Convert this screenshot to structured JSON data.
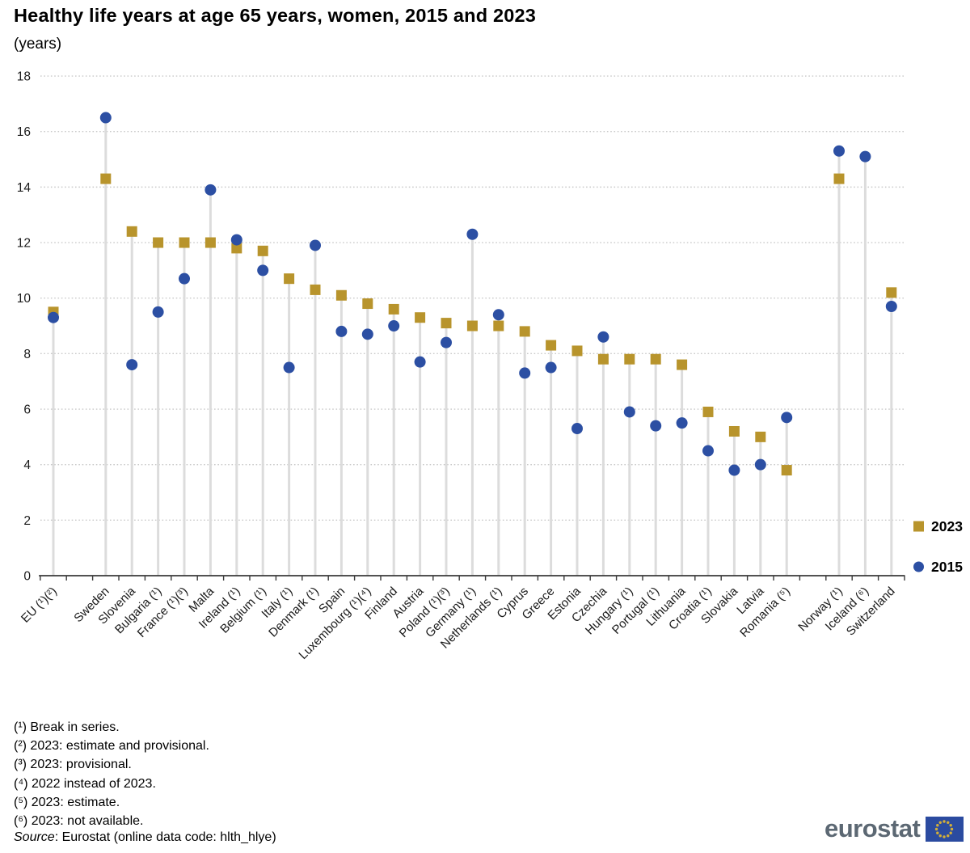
{
  "header": {
    "title": "Healthy life years at age 65 years, women, 2015 and 2023",
    "subtitle": "(years)"
  },
  "legend": {
    "items": [
      {
        "label": "2023",
        "marker": "square"
      },
      {
        "label": "2015",
        "marker": "circle"
      }
    ]
  },
  "footnotes": [
    "(¹) Break in series.",
    "(²) 2023: estimate and provisional.",
    "(³) 2023: provisional.",
    "(⁴) 2022 instead of 2023.",
    "(⁵) 2023: estimate.",
    "(⁶) 2023: not available."
  ],
  "source": {
    "label": "Source",
    "text": ": Eurostat (online data code: hlth_hlye)"
  },
  "logo": {
    "wordmark": "eurostat"
  },
  "chart_data": {
    "type": "scatter",
    "title": "Healthy life years at age 65 years, women, 2015 and 2023",
    "unit": "years",
    "ylim": [
      0,
      18
    ],
    "yticks": [
      0,
      2,
      4,
      6,
      8,
      10,
      12,
      14,
      16,
      18
    ],
    "grid": "horizontal dotted gridlines, solid x-axis, gray value stems per country",
    "legend_position": "right",
    "series_names": [
      "2023",
      "2015"
    ],
    "colors": {
      "s2023": "#B8942C",
      "s2015": "#2C4FA3",
      "stem": "#DCDCDC",
      "grid": "#C9C9C9",
      "axis": "#3A3A3A",
      "flag_blue": "#2B4BA0",
      "star_gold": "#D4AF37"
    },
    "points": [
      {
        "country": "EU (¹)(²)",
        "v2023": 9.5,
        "v2015": 9.3
      },
      {
        "country": "Sweden",
        "v2023": 14.3,
        "v2015": 16.5,
        "gap_before": true
      },
      {
        "country": "Slovenia",
        "v2023": 12.4,
        "v2015": 7.6
      },
      {
        "country": "Bulgaria (¹)",
        "v2023": 12.0,
        "v2015": 9.5
      },
      {
        "country": "France (¹)(³)",
        "v2023": 12.0,
        "v2015": 10.7
      },
      {
        "country": "Malta",
        "v2023": 12.0,
        "v2015": 13.9
      },
      {
        "country": "Ireland (¹)",
        "v2023": 11.8,
        "v2015": 12.1
      },
      {
        "country": "Belgium (¹)",
        "v2023": 11.7,
        "v2015": 11.0
      },
      {
        "country": "Italy (¹)",
        "v2023": 10.7,
        "v2015": 7.5
      },
      {
        "country": "Denmark (¹)",
        "v2023": 10.3,
        "v2015": 11.9
      },
      {
        "country": "Spain",
        "v2023": 10.1,
        "v2015": 8.8
      },
      {
        "country": "Luxembourg (¹)(⁴)",
        "v2023": 9.8,
        "v2015": 8.7
      },
      {
        "country": "Finland",
        "v2023": 9.6,
        "v2015": 9.0
      },
      {
        "country": "Austria",
        "v2023": 9.3,
        "v2015": 7.7
      },
      {
        "country": "Poland (¹)(³)",
        "v2023": 9.1,
        "v2015": 8.4
      },
      {
        "country": "Germany (¹)",
        "v2023": 9.0,
        "v2015": 12.3
      },
      {
        "country": "Netherlands (¹)",
        "v2023": 9.0,
        "v2015": 9.4
      },
      {
        "country": "Cyprus",
        "v2023": 8.8,
        "v2015": 7.3
      },
      {
        "country": "Greece",
        "v2023": 8.3,
        "v2015": 7.5
      },
      {
        "country": "Estonia",
        "v2023": 8.1,
        "v2015": 5.3
      },
      {
        "country": "Czechia",
        "v2023": 7.8,
        "v2015": 8.6
      },
      {
        "country": "Hungary (¹)",
        "v2023": 7.8,
        "v2015": 5.9
      },
      {
        "country": "Portugal (¹)",
        "v2023": 7.8,
        "v2015": 5.4
      },
      {
        "country": "Lithuania",
        "v2023": 7.6,
        "v2015": 5.5
      },
      {
        "country": "Croatia (¹)",
        "v2023": 5.9,
        "v2015": 4.5
      },
      {
        "country": "Slovakia",
        "v2023": 5.2,
        "v2015": 3.8
      },
      {
        "country": "Latvia",
        "v2023": 5.0,
        "v2015": 4.0
      },
      {
        "country": "Romania (⁵)",
        "v2023": 3.8,
        "v2015": 5.7
      },
      {
        "country": "Norway (¹)",
        "v2023": 14.3,
        "v2015": 15.3,
        "gap_before": true
      },
      {
        "country": "Iceland (⁶)",
        "v2023": null,
        "v2015": 15.1
      },
      {
        "country": "Switzerland",
        "v2023": 10.2,
        "v2015": 9.7
      }
    ]
  }
}
